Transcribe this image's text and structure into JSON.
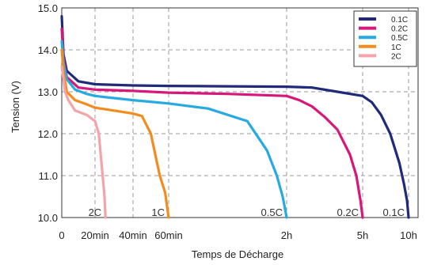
{
  "chart_data": {
    "type": "line",
    "title": "",
    "xlabel": "Temps de Décharge",
    "ylabel": "Tension (V)",
    "ylim": [
      10.0,
      15.0
    ],
    "y_ticks": [
      "10.0",
      "11.0",
      "12.0",
      "13.0",
      "14.0",
      "15.0"
    ],
    "x_ticks": [
      {
        "label": "0",
        "time_min": 0
      },
      {
        "label": "20min",
        "time_min": 20
      },
      {
        "label": "40min",
        "time_min": 40
      },
      {
        "label": "60min",
        "time_min": 60
      },
      {
        "label": "2h",
        "time_min": 120
      },
      {
        "label": "5h",
        "time_min": 300
      },
      {
        "label": "10h",
        "time_min": 600
      }
    ],
    "grid": "dashed",
    "legend_position": "top-right",
    "series": [
      {
        "name": "0.1C",
        "curve_label": "0.1C",
        "color": "#1f2a7a",
        "points": [
          [
            0,
            14.8
          ],
          [
            1,
            13.9
          ],
          [
            3,
            13.5
          ],
          [
            10,
            13.25
          ],
          [
            20,
            13.18
          ],
          [
            40,
            13.15
          ],
          [
            60,
            13.14
          ],
          [
            90,
            13.13
          ],
          [
            120,
            13.12
          ],
          [
            180,
            13.1
          ],
          [
            240,
            13.0
          ],
          [
            300,
            12.9
          ],
          [
            360,
            12.75
          ],
          [
            420,
            12.45
          ],
          [
            480,
            12.0
          ],
          [
            540,
            11.3
          ],
          [
            570,
            10.8
          ],
          [
            590,
            10.4
          ],
          [
            600,
            10.0
          ]
        ]
      },
      {
        "name": "0.2C",
        "curve_label": "0.2C",
        "color": "#d6187a",
        "points": [
          [
            0,
            14.5
          ],
          [
            1,
            13.8
          ],
          [
            3,
            13.35
          ],
          [
            10,
            13.1
          ],
          [
            20,
            13.05
          ],
          [
            40,
            13.02
          ],
          [
            60,
            12.98
          ],
          [
            90,
            12.95
          ],
          [
            120,
            12.9
          ],
          [
            150,
            12.8
          ],
          [
            180,
            12.65
          ],
          [
            210,
            12.4
          ],
          [
            240,
            12.1
          ],
          [
            270,
            11.5
          ],
          [
            285,
            11.0
          ],
          [
            295,
            10.4
          ],
          [
            300,
            10.0
          ]
        ]
      },
      {
        "name": "0.5C",
        "curve_label": "0.5C",
        "color": "#27a9e1",
        "points": [
          [
            0,
            14.2
          ],
          [
            1,
            13.7
          ],
          [
            3,
            13.3
          ],
          [
            8,
            13.05
          ],
          [
            15,
            12.95
          ],
          [
            20,
            12.9
          ],
          [
            30,
            12.85
          ],
          [
            40,
            12.8
          ],
          [
            60,
            12.72
          ],
          [
            80,
            12.6
          ],
          [
            100,
            12.3
          ],
          [
            110,
            11.6
          ],
          [
            115,
            11.0
          ],
          [
            118,
            10.5
          ],
          [
            120,
            10.0
          ]
        ]
      },
      {
        "name": "1C",
        "curve_label": "1C",
        "color": "#f28c1e",
        "points": [
          [
            0,
            14.0
          ],
          [
            1,
            13.5
          ],
          [
            3,
            13.0
          ],
          [
            8,
            12.8
          ],
          [
            15,
            12.7
          ],
          [
            20,
            12.62
          ],
          [
            30,
            12.55
          ],
          [
            40,
            12.48
          ],
          [
            45,
            12.42
          ],
          [
            50,
            12.0
          ],
          [
            55,
            11.0
          ],
          [
            58,
            10.6
          ],
          [
            60,
            10.0
          ]
        ]
      },
      {
        "name": "2C",
        "curve_label": "2C",
        "color": "#f4a3a8",
        "points": [
          [
            0,
            13.6
          ],
          [
            1,
            13.3
          ],
          [
            2,
            13.0
          ],
          [
            4,
            12.8
          ],
          [
            8,
            12.55
          ],
          [
            15,
            12.45
          ],
          [
            20,
            12.3
          ],
          [
            22,
            12.0
          ],
          [
            23,
            11.5
          ],
          [
            24,
            11.0
          ],
          [
            25,
            10.5
          ],
          [
            25.5,
            10.0
          ]
        ]
      }
    ]
  }
}
